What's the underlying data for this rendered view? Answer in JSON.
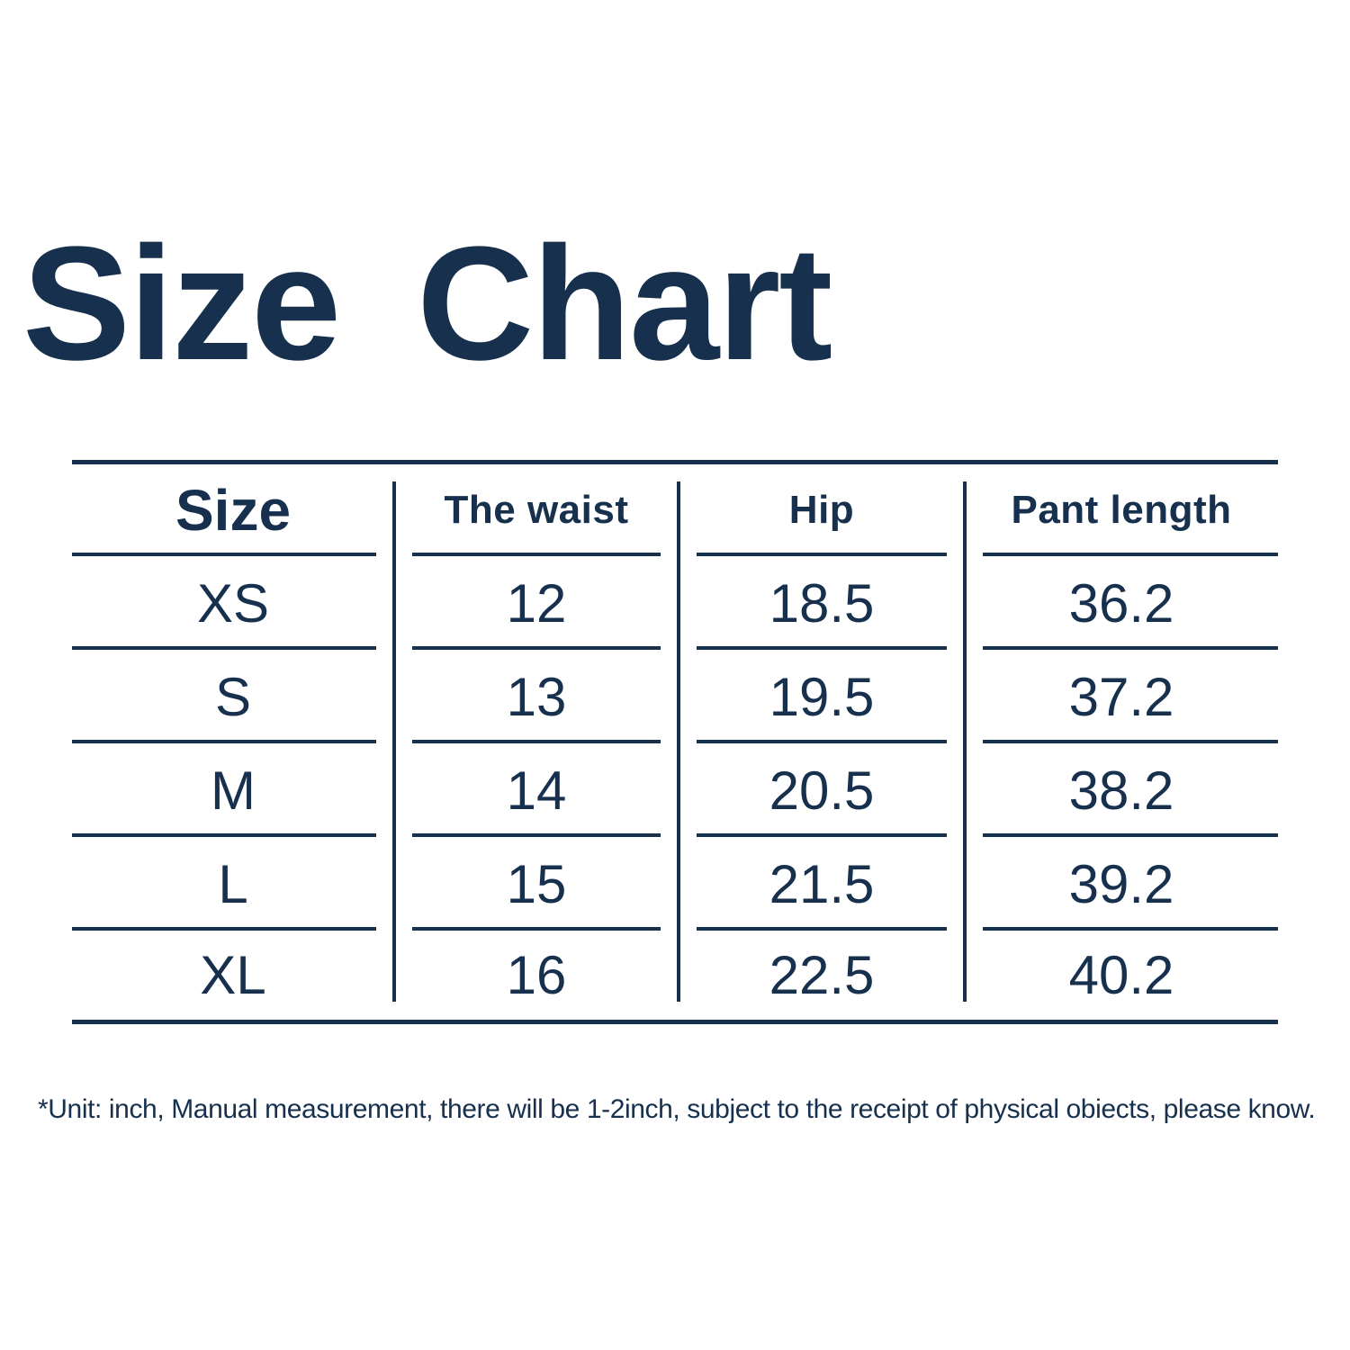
{
  "page": {
    "background_color": "#ffffff",
    "ink_color": "#16304e"
  },
  "chart_data": {
    "type": "table",
    "title": "Size Chart",
    "columns": [
      "Size",
      "The waist",
      "Hip",
      "Pant length"
    ],
    "rows": [
      [
        "XS",
        "12",
        "18.5",
        "36.2"
      ],
      [
        "S",
        "13",
        "19.5",
        "37.2"
      ],
      [
        "M",
        "14",
        "20.5",
        "38.2"
      ],
      [
        "L",
        "15",
        "21.5",
        "39.2"
      ],
      [
        "XL",
        "16",
        "22.5",
        "40.2"
      ]
    ],
    "unit": "inch",
    "footnote": "*Unit: inch, Manual measurement, there will be 1-2inch, subject to the receipt of physical obiects, please know.",
    "layout": {
      "grid": "horizontal rules per column segment, vertical dividers between columns",
      "legend_position": "none"
    }
  }
}
